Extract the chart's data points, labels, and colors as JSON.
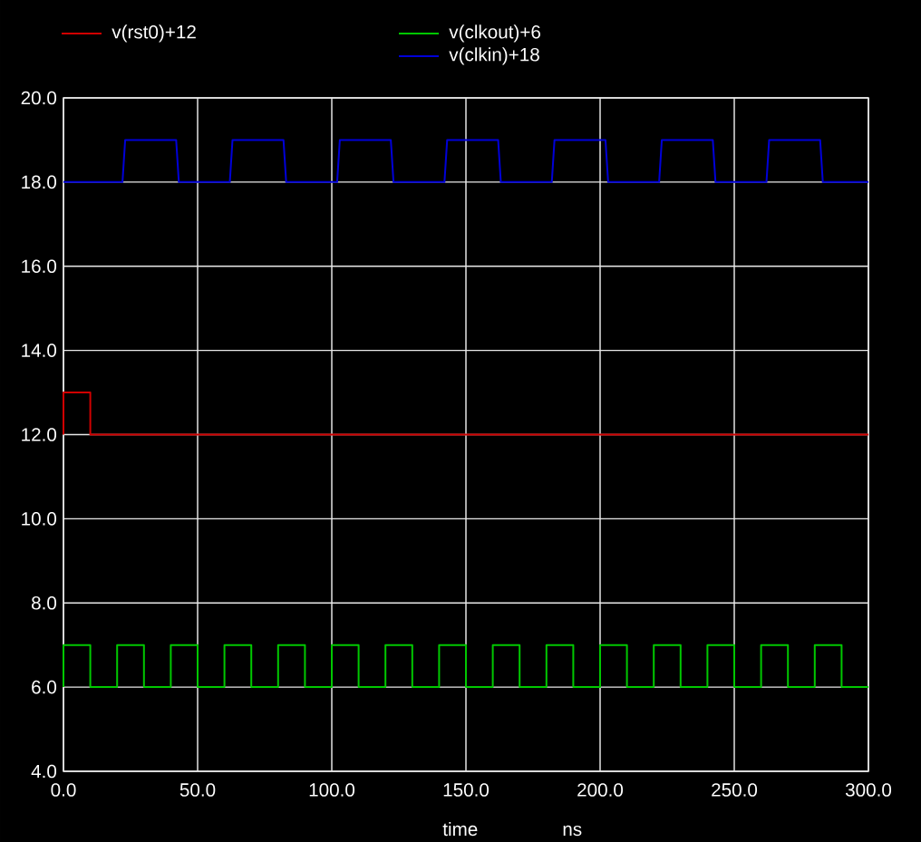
{
  "chart_data": {
    "type": "line",
    "xlabel": "time",
    "annotations": [
      "ns"
    ],
    "xlim": [
      0,
      300
    ],
    "ylim": [
      4,
      20
    ],
    "xticks": [
      {
        "value": 0,
        "label": "0.0"
      },
      {
        "value": 50,
        "label": "50.0"
      },
      {
        "value": 100,
        "label": "100.0"
      },
      {
        "value": 150,
        "label": "150.0"
      },
      {
        "value": 200,
        "label": "200.0"
      },
      {
        "value": 250,
        "label": "250.0"
      },
      {
        "value": 300,
        "label": "300.0"
      }
    ],
    "yticks": [
      {
        "value": 4,
        "label": "4.0"
      },
      {
        "value": 6,
        "label": "6.0"
      },
      {
        "value": 8,
        "label": "8.0"
      },
      {
        "value": 10,
        "label": "10.0"
      },
      {
        "value": 12,
        "label": "12.0"
      },
      {
        "value": 14,
        "label": "14.0"
      },
      {
        "value": 16,
        "label": "16.0"
      },
      {
        "value": 18,
        "label": "18.0"
      },
      {
        "value": 20,
        "label": "20.0"
      }
    ],
    "grid": true,
    "legend": "top",
    "series": [
      {
        "name": "v(rst0)+12",
        "color": "#d00000",
        "x": [
          0,
          0,
          10,
          10,
          300
        ],
        "values": [
          12,
          13,
          13,
          12,
          12
        ]
      },
      {
        "name": "v(clkout)+6",
        "color": "#00c800",
        "x": [
          0,
          0,
          10,
          10,
          20,
          20,
          30,
          30,
          40,
          40,
          50,
          50,
          60,
          60,
          70,
          70,
          80,
          80,
          90,
          90,
          100,
          100,
          110,
          110,
          120,
          120,
          130,
          130,
          140,
          140,
          150,
          150,
          160,
          160,
          170,
          170,
          180,
          180,
          190,
          190,
          200,
          200,
          210,
          210,
          220,
          220,
          230,
          230,
          240,
          240,
          250,
          250,
          260,
          260,
          270,
          270,
          280,
          280,
          290,
          290,
          300
        ],
        "values": [
          6,
          7,
          7,
          6,
          6,
          7,
          7,
          6,
          6,
          7,
          7,
          6,
          6,
          7,
          7,
          6,
          6,
          7,
          7,
          6,
          6,
          7,
          7,
          6,
          6,
          7,
          7,
          6,
          6,
          7,
          7,
          6,
          6,
          7,
          7,
          6,
          6,
          7,
          7,
          6,
          6,
          7,
          7,
          6,
          6,
          7,
          7,
          6,
          6,
          7,
          7,
          6,
          6,
          7,
          7,
          6,
          6,
          7,
          7,
          6,
          6
        ]
      },
      {
        "name": "v(clkin)+18",
        "color": "#0000d8",
        "x": [
          0,
          22,
          23,
          42,
          43,
          62,
          63,
          82,
          83,
          102,
          103,
          122,
          123,
          142,
          143,
          162,
          163,
          182,
          183,
          202,
          203,
          222,
          223,
          242,
          243,
          262,
          263,
          282,
          283,
          300
        ],
        "values": [
          18,
          18,
          19,
          19,
          18,
          18,
          19,
          19,
          18,
          18,
          19,
          19,
          18,
          18,
          19,
          19,
          18,
          18,
          19,
          19,
          18,
          18,
          19,
          19,
          18,
          18,
          19,
          19,
          18,
          18
        ]
      }
    ]
  }
}
